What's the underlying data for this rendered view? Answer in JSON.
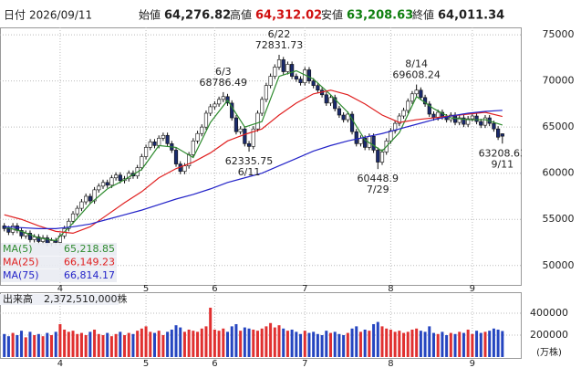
{
  "chart_data": {
    "type": "candlestick",
    "header": {
      "date_label": "日付",
      "date": "2026/09/11",
      "open_name": "始値",
      "open_label": "64,276.82",
      "high_name": "高値",
      "high_label": "64,312.02",
      "low_name": "安値",
      "low_label": "63,208.63",
      "close_name": "終値",
      "close_label": "64,011.34"
    },
    "ylim": [
      47900,
      75800
    ],
    "yticks": [
      50000,
      55000,
      60000,
      65000,
      70000,
      75000
    ],
    "xlim": [
      -1,
      120.5
    ],
    "xticks": [
      {
        "value": 13,
        "label": "4"
      },
      {
        "value": 33,
        "label": "5"
      },
      {
        "value": 49,
        "label": "6"
      },
      {
        "value": 70,
        "label": "7"
      },
      {
        "value": 90,
        "label": "8"
      },
      {
        "value": 109,
        "label": "9"
      }
    ],
    "grid": true,
    "up_color": "#ffffff",
    "down_color": "#1a2a6c",
    "candles": [
      [
        54300,
        54600,
        53700,
        54000
      ],
      [
        54000,
        54300,
        53300,
        53600
      ],
      [
        53600,
        54600,
        53300,
        54300
      ],
      [
        54300,
        54600,
        53500,
        53800
      ],
      [
        53800,
        54100,
        52900,
        53200
      ],
      [
        53200,
        53800,
        52900,
        53500
      ],
      [
        53500,
        53800,
        52500,
        52800
      ],
      [
        52800,
        53400,
        52500,
        53100
      ],
      [
        53100,
        53400,
        52300,
        52600
      ],
      [
        52600,
        53300,
        52300,
        53000
      ],
      [
        53000,
        53300,
        52100,
        52400
      ],
      [
        52400,
        53000,
        52100,
        52700
      ],
      [
        52700,
        53000,
        52200,
        52500
      ],
      [
        52500,
        53500,
        52200,
        53200
      ],
      [
        53200,
        54300,
        52900,
        54000
      ],
      [
        54000,
        55100,
        53700,
        54800
      ],
      [
        54800,
        55900,
        54500,
        55600
      ],
      [
        55600,
        56500,
        55300,
        56200
      ],
      [
        56200,
        57200,
        55900,
        56900
      ],
      [
        56900,
        57800,
        56600,
        57500
      ],
      [
        57500,
        57800,
        56700,
        57000
      ],
      [
        57000,
        58500,
        56700,
        58200
      ],
      [
        58200,
        58900,
        57900,
        58600
      ],
      [
        58600,
        59300,
        58300,
        59000
      ],
      [
        59000,
        59300,
        58400,
        58700
      ],
      [
        58700,
        59800,
        58400,
        59500
      ],
      [
        59500,
        60100,
        59200,
        59800
      ],
      [
        59800,
        60100,
        58900,
        59200
      ],
      [
        59200,
        59700,
        58900,
        59400
      ],
      [
        59400,
        60300,
        59100,
        60000
      ],
      [
        60000,
        60300,
        59400,
        59700
      ],
      [
        59700,
        60900,
        59400,
        60600
      ],
      [
        60600,
        62100,
        60300,
        61800
      ],
      [
        61800,
        63100,
        61500,
        62800
      ],
      [
        62800,
        63700,
        62500,
        63400
      ],
      [
        63400,
        63700,
        62700,
        63000
      ],
      [
        63000,
        64100,
        62700,
        63800
      ],
      [
        63800,
        64400,
        63500,
        64100
      ],
      [
        64100,
        64400,
        62900,
        63200
      ],
      [
        63200,
        63500,
        62200,
        62500
      ],
      [
        62500,
        62800,
        60700,
        61000
      ],
      [
        61000,
        61300,
        59900,
        60200
      ],
      [
        60200,
        61100,
        59900,
        60800
      ],
      [
        60800,
        62300,
        60500,
        62000
      ],
      [
        62000,
        63800,
        61700,
        63500
      ],
      [
        63500,
        64600,
        63200,
        64300
      ],
      [
        64300,
        65300,
        64000,
        65000
      ],
      [
        65000,
        66800,
        64700,
        66500
      ],
      [
        66500,
        67500,
        66200,
        67200
      ],
      [
        67200,
        67800,
        66900,
        67500
      ],
      [
        67500,
        68300,
        67200,
        68000
      ],
      [
        68000,
        68786.49,
        67700,
        68300
      ],
      [
        68300,
        68600,
        67300,
        67600
      ],
      [
        67600,
        67900,
        65700,
        66000
      ],
      [
        66000,
        66300,
        64200,
        64500
      ],
      [
        64500,
        65100,
        64200,
        64800
      ],
      [
        64800,
        65100,
        62900,
        63200
      ],
      [
        63200,
        63500,
        62335.75,
        62900
      ],
      [
        62900,
        65100,
        62600,
        64800
      ],
      [
        64800,
        66800,
        64500,
        66500
      ],
      [
        66500,
        68300,
        66200,
        68000
      ],
      [
        68000,
        69800,
        67700,
        69500
      ],
      [
        69500,
        70800,
        69200,
        70500
      ],
      [
        70500,
        71800,
        70200,
        71500
      ],
      [
        71500,
        72831.73,
        71200,
        72300
      ],
      [
        72300,
        72600,
        70700,
        71000
      ],
      [
        71000,
        72100,
        70700,
        71800
      ],
      [
        71800,
        72100,
        70200,
        70500
      ],
      [
        70500,
        70800,
        69900,
        70200
      ],
      [
        70200,
        70500,
        69500,
        69800
      ],
      [
        69800,
        71500,
        69500,
        71200
      ],
      [
        71200,
        71500,
        69700,
        70000
      ],
      [
        70000,
        70300,
        69200,
        69500
      ],
      [
        69500,
        69800,
        68700,
        69000
      ],
      [
        69000,
        69300,
        68200,
        68500
      ],
      [
        68500,
        68800,
        67300,
        67600
      ],
      [
        67600,
        68500,
        67300,
        68200
      ],
      [
        68200,
        68500,
        66700,
        67000
      ],
      [
        67000,
        67300,
        66000,
        66300
      ],
      [
        66300,
        66600,
        65500,
        65800
      ],
      [
        65800,
        66700,
        65500,
        66400
      ],
      [
        66400,
        66700,
        64200,
        64500
      ],
      [
        64500,
        64800,
        62900,
        63200
      ],
      [
        63200,
        64100,
        62900,
        63800
      ],
      [
        63800,
        64100,
        62500,
        62800
      ],
      [
        62800,
        64300,
        62500,
        64000
      ],
      [
        64000,
        64300,
        62200,
        62500
      ],
      [
        62500,
        62800,
        60448.9,
        61200
      ],
      [
        61200,
        62600,
        60900,
        62300
      ],
      [
        62300,
        63800,
        62000,
        63500
      ],
      [
        63500,
        64900,
        63200,
        64600
      ],
      [
        64600,
        65700,
        64300,
        65400
      ],
      [
        65400,
        66500,
        65100,
        66200
      ],
      [
        66200,
        67100,
        65900,
        66800
      ],
      [
        66800,
        68100,
        66500,
        67800
      ],
      [
        67800,
        68900,
        67500,
        68600
      ],
      [
        68600,
        69608.24,
        68300,
        69000
      ],
      [
        69000,
        69300,
        67900,
        68200
      ],
      [
        68200,
        68500,
        67200,
        67500
      ],
      [
        67500,
        67800,
        66100,
        66400
      ],
      [
        66400,
        66700,
        65700,
        66000
      ],
      [
        66000,
        66900,
        65700,
        66600
      ],
      [
        66600,
        66900,
        65800,
        66100
      ],
      [
        66100,
        66400,
        65500,
        65800
      ],
      [
        65800,
        66600,
        65500,
        66300
      ],
      [
        66300,
        66600,
        65200,
        65500
      ],
      [
        65500,
        66300,
        65200,
        66000
      ],
      [
        66000,
        66300,
        65000,
        65300
      ],
      [
        65300,
        66200,
        65000,
        65900
      ],
      [
        65900,
        66500,
        65600,
        66200
      ],
      [
        66200,
        66500,
        65300,
        65600
      ],
      [
        65600,
        65900,
        64900,
        65200
      ],
      [
        65200,
        66300,
        64900,
        66000
      ],
      [
        66000,
        66300,
        65100,
        65400
      ],
      [
        65400,
        65700,
        64500,
        64800
      ],
      [
        64800,
        65100,
        63600,
        63900
      ],
      [
        64276.82,
        64312.02,
        63208.63,
        64011.34
      ]
    ],
    "annotations": [
      {
        "date": "6/3",
        "price": 68786.49
      },
      {
        "date": "6/22",
        "price": 72831.73
      },
      {
        "date": "6/11",
        "price": 62335.75
      },
      {
        "date": "8/14",
        "price": 69608.24
      },
      {
        "date": "7/29",
        "price": 60448.9
      },
      {
        "date": "9/11",
        "price": 63208.63
      }
    ],
    "series": [
      {
        "name": "MA(5)",
        "color": "#2e8b2e",
        "last_label": "65,218.85",
        "x": [
          0,
          4,
          8,
          12,
          16,
          20,
          24,
          28,
          32,
          36,
          40,
          44,
          48,
          52,
          56,
          60,
          64,
          68,
          72,
          76,
          80,
          84,
          88,
          92,
          96,
          100,
          104,
          108,
          112,
          116
        ],
        "values": [
          54200,
          53700,
          53000,
          52700,
          54600,
          56700,
          58300,
          59300,
          60400,
          63000,
          62800,
          61700,
          65500,
          67900,
          65000,
          65600,
          70500,
          71100,
          70200,
          68500,
          66600,
          63600,
          62400,
          64400,
          68300,
          67000,
          66000,
          65800,
          65800,
          65218.85
        ]
      },
      {
        "name": "MA(25)",
        "color": "#e02020",
        "last_label": "66,149.23",
        "x": [
          0,
          4,
          8,
          12,
          16,
          20,
          24,
          28,
          32,
          36,
          40,
          44,
          48,
          52,
          56,
          60,
          64,
          68,
          72,
          76,
          80,
          84,
          88,
          92,
          96,
          100,
          104,
          108,
          112,
          116
        ],
        "values": [
          55500,
          55000,
          54300,
          53700,
          53500,
          54200,
          55500,
          56800,
          58000,
          59500,
          60500,
          61200,
          62200,
          63500,
          64200,
          64800,
          66300,
          67600,
          68600,
          69000,
          68500,
          67500,
          66300,
          65500,
          65800,
          66000,
          66200,
          66400,
          66600,
          66149.23
        ]
      },
      {
        "name": "MA(75)",
        "color": "#2323c8",
        "last_label": "66,814.17",
        "x": [
          0,
          4,
          8,
          12,
          16,
          20,
          24,
          28,
          32,
          36,
          40,
          44,
          48,
          52,
          56,
          60,
          64,
          68,
          72,
          76,
          80,
          84,
          88,
          92,
          96,
          100,
          104,
          108,
          112,
          116
        ],
        "values": [
          54200,
          54100,
          54000,
          54000,
          54200,
          54500,
          55000,
          55500,
          56000,
          56600,
          57200,
          57700,
          58300,
          59000,
          59500,
          60000,
          60800,
          61600,
          62400,
          63000,
          63500,
          63900,
          64300,
          64800,
          65300,
          65800,
          66200,
          66500,
          66700,
          66814.17
        ]
      }
    ],
    "volume": {
      "title": "出来高",
      "total_label": "2,372,510,000株",
      "unit": "(万株)",
      "ylim": [
        0,
        483000
      ],
      "yticks": [
        200000,
        400000
      ],
      "up_color": "#e03030",
      "down_color": "#2545c0",
      "values": [
        210000,
        190000,
        220000,
        200000,
        240000,
        180000,
        230000,
        200000,
        210000,
        190000,
        220000,
        200000,
        230000,
        300000,
        250000,
        230000,
        240000,
        210000,
        220000,
        200000,
        230000,
        250000,
        210000,
        200000,
        220000,
        190000,
        210000,
        230000,
        200000,
        220000,
        210000,
        240000,
        260000,
        280000,
        230000,
        220000,
        240000,
        200000,
        230000,
        250000,
        290000,
        270000,
        230000,
        250000,
        240000,
        230000,
        260000,
        280000,
        450000,
        250000,
        240000,
        260000,
        230000,
        280000,
        300000,
        240000,
        270000,
        260000,
        250000,
        240000,
        260000,
        280000,
        310000,
        270000,
        290000,
        260000,
        240000,
        250000,
        230000,
        210000,
        240000,
        220000,
        230000,
        210000,
        200000,
        240000,
        220000,
        230000,
        210000,
        200000,
        220000,
        260000,
        280000,
        230000,
        250000,
        240000,
        300000,
        320000,
        280000,
        260000,
        250000,
        230000,
        240000,
        220000,
        230000,
        250000,
        260000,
        240000,
        230000,
        280000,
        220000,
        210000,
        230000,
        200000,
        220000,
        210000,
        230000,
        220000,
        250000,
        210000,
        240000,
        220000,
        230000,
        240000,
        260000,
        250000,
        237251
      ]
    }
  }
}
